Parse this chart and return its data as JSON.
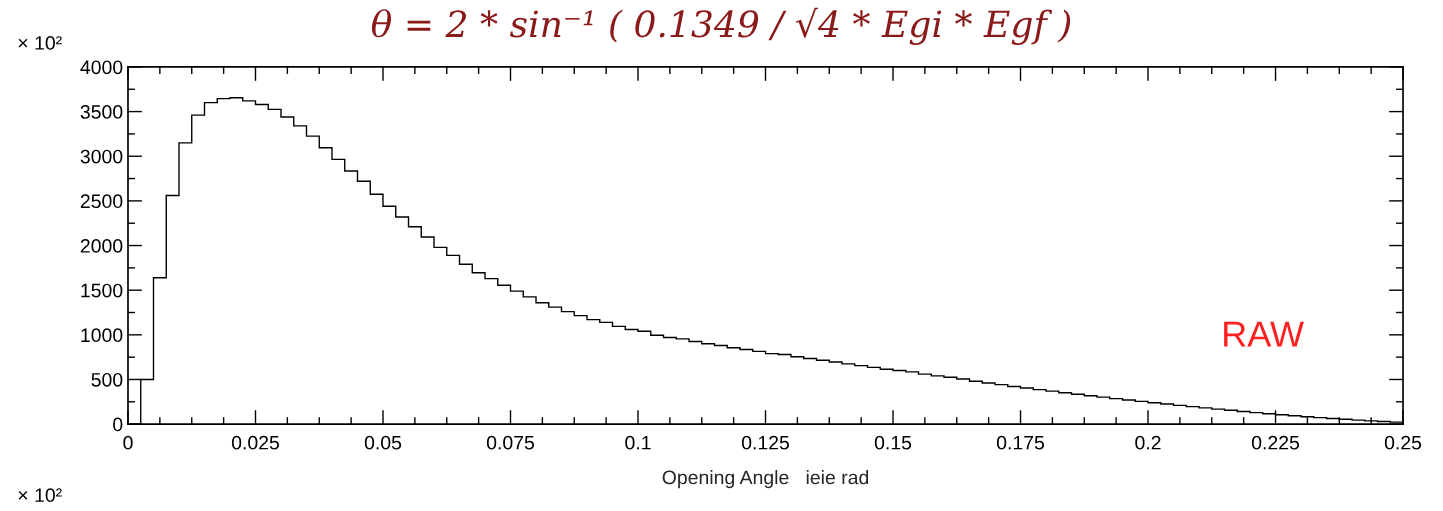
{
  "chart_data": {
    "type": "histogram",
    "title": "θ = 2 * sin⁻¹ ( 0.1349 / √4 * Egi * Egf )",
    "xlabel": "Opening Angle   ieie rad",
    "annotations": [
      "× 10²",
      "RAW",
      "× 10²"
    ],
    "bins": [
      0,
      0.0025,
      0.005,
      0.0075,
      0.01,
      0.0125,
      0.015,
      0.0175,
      0.02,
      0.0225,
      0.025,
      0.0275,
      0.03,
      0.0325,
      0.035,
      0.0375,
      0.04,
      0.0425,
      0.045,
      0.0475,
      0.05,
      0.0525,
      0.055,
      0.0575,
      0.06,
      0.0625,
      0.065,
      0.0675,
      0.07,
      0.0725,
      0.075,
      0.0775,
      0.08,
      0.0825,
      0.085,
      0.0875,
      0.09,
      0.0925,
      0.095,
      0.0975,
      0.1,
      0.1025,
      0.105,
      0.1075,
      0.11,
      0.1125,
      0.115,
      0.1175,
      0.12,
      0.1225,
      0.125,
      0.1275,
      0.13,
      0.1325,
      0.135,
      0.1375,
      0.14,
      0.1425,
      0.145,
      0.1475,
      0.15,
      0.1525,
      0.155,
      0.1575,
      0.16,
      0.1625,
      0.165,
      0.1675,
      0.17,
      0.1725,
      0.175,
      0.1775,
      0.18,
      0.1825,
      0.185,
      0.1875,
      0.19,
      0.1925,
      0.195,
      0.1975,
      0.2,
      0.2025,
      0.205,
      0.2075,
      0.21,
      0.2125,
      0.215,
      0.2175,
      0.22,
      0.2225,
      0.225,
      0.2275,
      0.23,
      0.2325,
      0.235,
      0.2375,
      0.24,
      0.2425,
      0.245,
      0.2475,
      0.25
    ],
    "values": [
      0,
      500,
      1640,
      2560,
      3150,
      3460,
      3600,
      3645,
      3655,
      3620,
      3580,
      3525,
      3440,
      3340,
      3225,
      3095,
      2965,
      2835,
      2720,
      2575,
      2440,
      2320,
      2210,
      2095,
      1980,
      1890,
      1790,
      1695,
      1630,
      1555,
      1490,
      1425,
      1360,
      1310,
      1260,
      1215,
      1170,
      1140,
      1095,
      1060,
      1040,
      995,
      970,
      955,
      925,
      900,
      880,
      855,
      835,
      815,
      790,
      780,
      755,
      735,
      715,
      695,
      675,
      655,
      635,
      615,
      600,
      585,
      560,
      540,
      525,
      505,
      480,
      460,
      442,
      422,
      404,
      387,
      370,
      352,
      335,
      318,
      302,
      286,
      270,
      255,
      240,
      225,
      210,
      196,
      182,
      168,
      155,
      142,
      129,
      117,
      105,
      94,
      83,
      73,
      63,
      54,
      45,
      37,
      30,
      23
    ],
    "color": "#000000",
    "xlim": [
      0,
      0.25
    ],
    "ylim": [
      0,
      4000
    ],
    "xticks": [
      0,
      0.025,
      0.05,
      0.075,
      0.1,
      0.125,
      0.15,
      0.175,
      0.2,
      0.225,
      0.25
    ],
    "yticks": [
      0,
      500,
      1000,
      1500,
      2000,
      2500,
      3000,
      3500,
      4000
    ],
    "grid": false,
    "legend": false
  }
}
